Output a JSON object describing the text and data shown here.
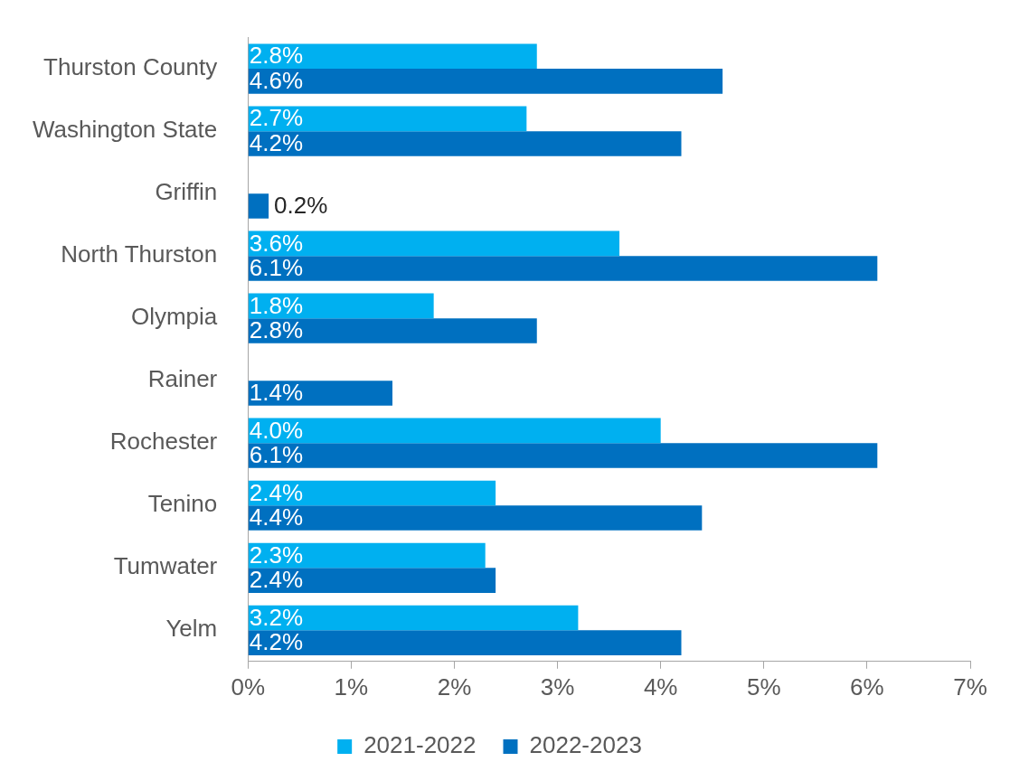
{
  "chart_data": {
    "type": "bar",
    "orientation": "horizontal",
    "categories": [
      "Thurston County",
      "Washington State",
      "Griffin",
      "North Thurston",
      "Olympia",
      "Rainer",
      "Rochester",
      "Tenino",
      "Tumwater",
      "Yelm"
    ],
    "series": [
      {
        "name": "2021-2022",
        "color": "#00b0f0",
        "values": [
          2.8,
          2.7,
          null,
          3.6,
          1.8,
          null,
          4.0,
          2.4,
          2.3,
          3.2
        ],
        "value_labels": [
          "2.8%",
          "2.7%",
          null,
          "3.6%",
          "1.8%",
          null,
          "4.0%",
          "2.4%",
          "2.3%",
          "3.2%"
        ]
      },
      {
        "name": "2022-2023",
        "color": "#0070c0",
        "values": [
          4.6,
          4.2,
          0.2,
          6.1,
          2.8,
          1.4,
          6.1,
          4.4,
          2.4,
          4.2
        ],
        "value_labels": [
          "4.6%",
          "4.2%",
          "0.2%",
          "6.1%",
          "2.8%",
          "1.4%",
          "6.1%",
          "4.4%",
          "2.4%",
          "4.2%"
        ]
      }
    ],
    "xlim": [
      0,
      7
    ],
    "xticks": [
      {
        "value": 0,
        "label": "0%"
      },
      {
        "value": 1,
        "label": "1%"
      },
      {
        "value": 2,
        "label": "2%"
      },
      {
        "value": 3,
        "label": "3%"
      },
      {
        "value": 4,
        "label": "4%"
      },
      {
        "value": 5,
        "label": "5%"
      },
      {
        "value": 6,
        "label": "6%"
      },
      {
        "value": 7,
        "label": "7%"
      }
    ],
    "grid": false,
    "legend": "bottom"
  }
}
